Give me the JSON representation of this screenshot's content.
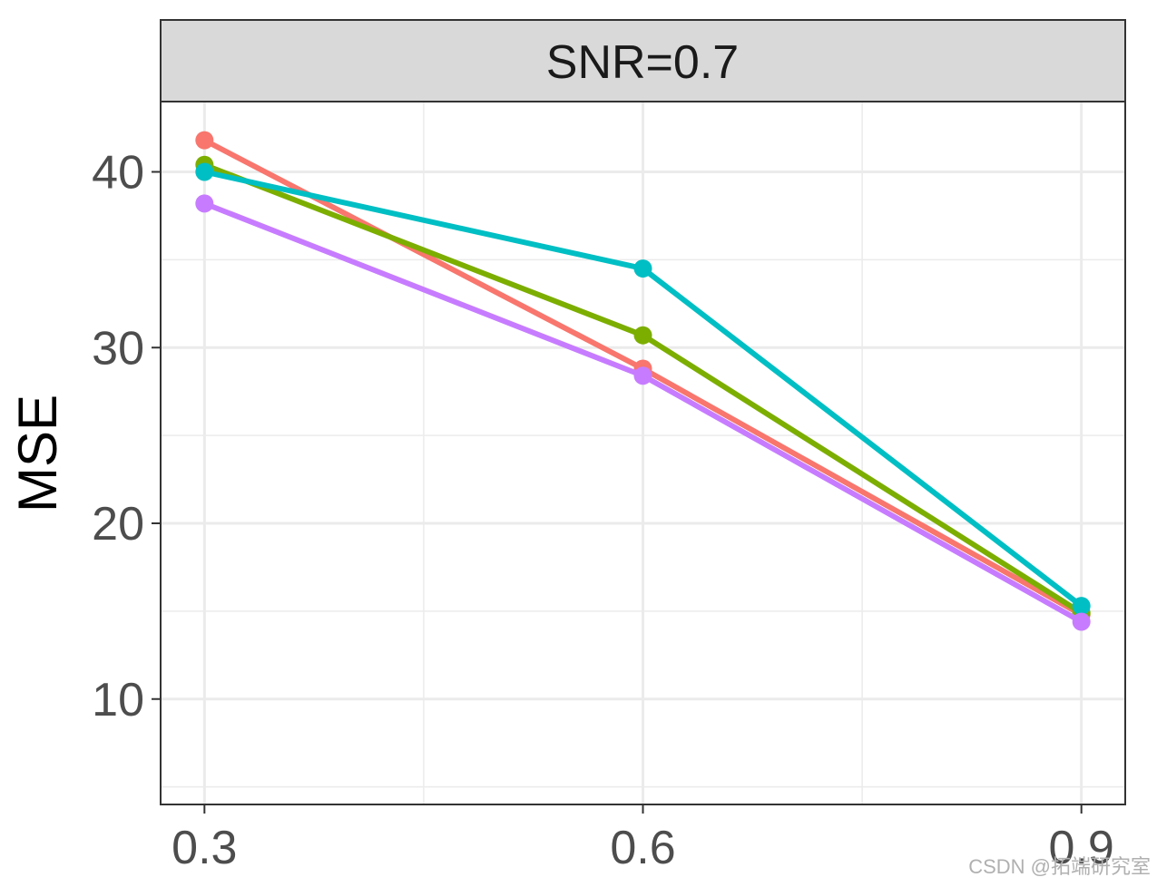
{
  "chart_data": {
    "type": "line",
    "facet_label": "SNR=0.7",
    "ylabel": "MSE",
    "xlabel": "",
    "x": [
      0.3,
      0.6,
      0.9
    ],
    "x_tick_labels": [
      "0.3",
      "0.6",
      "0.9"
    ],
    "y_ticks": [
      10,
      20,
      30,
      40
    ],
    "y_tick_labels": [
      "10",
      "20",
      "30",
      "40"
    ],
    "xlim": [
      0.27,
      0.93
    ],
    "ylim": [
      4,
      44
    ],
    "grid": true,
    "legend": "none visible",
    "series": [
      {
        "color": "#F8766D",
        "values": [
          41.8,
          28.8,
          14.8
        ]
      },
      {
        "color": "#7CAE00",
        "values": [
          40.4,
          30.7,
          14.9
        ]
      },
      {
        "color": "#00BFC4",
        "values": [
          40.0,
          34.5,
          15.3
        ]
      },
      {
        "color": "#C77CFF",
        "values": [
          38.2,
          28.4,
          14.4
        ]
      }
    ]
  },
  "watermark": "CSDN @拓端研究室"
}
